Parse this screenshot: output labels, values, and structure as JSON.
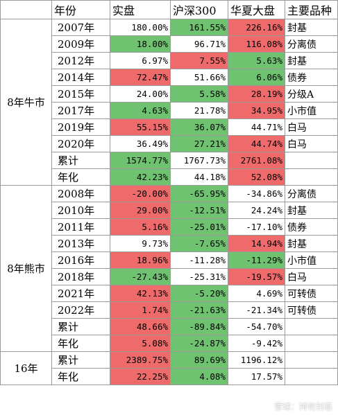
{
  "header": [
    "年份",
    "实盘",
    "沪深300",
    "华夏大盘",
    "主要品种"
  ],
  "groups": [
    {
      "label": "8年牛市",
      "rows": [
        {
          "year": "2007年",
          "cells": [
            {
              "v": "180.00%",
              "c": "w"
            },
            {
              "v": "161.55%",
              "c": "g"
            },
            {
              "v": "226.16%",
              "c": "r"
            }
          ],
          "variety": "封基"
        },
        {
          "year": "2009年",
          "cells": [
            {
              "v": "18.00%",
              "c": "g"
            },
            {
              "v": "96.71%",
              "c": "w"
            },
            {
              "v": "116.08%",
              "c": "r"
            }
          ],
          "variety": "分离债"
        },
        {
          "year": "2012年",
          "cells": [
            {
              "v": "6.97%",
              "c": "w"
            },
            {
              "v": "7.55%",
              "c": "r"
            },
            {
              "v": "5.63%",
              "c": "g"
            }
          ],
          "variety": "封基"
        },
        {
          "year": "2014年",
          "cells": [
            {
              "v": "72.47%",
              "c": "r"
            },
            {
              "v": "51.66%",
              "c": "w"
            },
            {
              "v": "6.06%",
              "c": "g"
            }
          ],
          "variety": "债券"
        },
        {
          "year": "2015年",
          "cells": [
            {
              "v": "24.00%",
              "c": "w"
            },
            {
              "v": "5.58%",
              "c": "g"
            },
            {
              "v": "28.19%",
              "c": "r"
            }
          ],
          "variety": "分级A"
        },
        {
          "year": "2017年",
          "cells": [
            {
              "v": "4.63%",
              "c": "g"
            },
            {
              "v": "21.78%",
              "c": "w"
            },
            {
              "v": "34.95%",
              "c": "r"
            }
          ],
          "variety": "小市值"
        },
        {
          "year": "2019年",
          "cells": [
            {
              "v": "55.15%",
              "c": "r"
            },
            {
              "v": "36.07%",
              "c": "g"
            },
            {
              "v": "44.71%",
              "c": "w"
            }
          ],
          "variety": "白马"
        },
        {
          "year": "2020年",
          "cells": [
            {
              "v": "36.49%",
              "c": "w"
            },
            {
              "v": "27.21%",
              "c": "g"
            },
            {
              "v": "44.74%",
              "c": "r"
            }
          ],
          "variety": "白马"
        },
        {
          "year": "累计",
          "cells": [
            {
              "v": "1574.77%",
              "c": "g"
            },
            {
              "v": "1767.73%",
              "c": "w"
            },
            {
              "v": "2761.08%",
              "c": "r"
            }
          ],
          "variety": ""
        },
        {
          "year": "年化",
          "cells": [
            {
              "v": "42.23%",
              "c": "g"
            },
            {
              "v": "44.18%",
              "c": "w"
            },
            {
              "v": "52.08%",
              "c": "r"
            }
          ],
          "variety": ""
        }
      ]
    },
    {
      "label": "8年熊市",
      "rows": [
        {
          "year": "2008年",
          "cells": [
            {
              "v": "-20.00%",
              "c": "r"
            },
            {
              "v": "-65.95%",
              "c": "g"
            },
            {
              "v": "-34.86%",
              "c": "w"
            }
          ],
          "variety": "分离债"
        },
        {
          "year": "2010年",
          "cells": [
            {
              "v": "29.00%",
              "c": "r"
            },
            {
              "v": "-12.51%",
              "c": "g"
            },
            {
              "v": "24.24%",
              "c": "w"
            }
          ],
          "variety": "封基"
        },
        {
          "year": "2011年",
          "cells": [
            {
              "v": "5.16%",
              "c": "r"
            },
            {
              "v": "-25.01%",
              "c": "g"
            },
            {
              "v": "-17.10%",
              "c": "w"
            }
          ],
          "variety": "债券"
        },
        {
          "year": "2013年",
          "cells": [
            {
              "v": "9.73%",
              "c": "w"
            },
            {
              "v": "-7.65%",
              "c": "g"
            },
            {
              "v": "14.94%",
              "c": "r"
            }
          ],
          "variety": "封基"
        },
        {
          "year": "2016年",
          "cells": [
            {
              "v": "18.96%",
              "c": "r"
            },
            {
              "v": "-11.28%",
              "c": "w"
            },
            {
              "v": "-11.29%",
              "c": "g"
            }
          ],
          "variety": "小市值"
        },
        {
          "year": "2018年",
          "cells": [
            {
              "v": "-27.43%",
              "c": "g"
            },
            {
              "v": "-25.31%",
              "c": "w"
            },
            {
              "v": "-19.57%",
              "c": "r"
            }
          ],
          "variety": "白马"
        },
        {
          "year": "2021年",
          "cells": [
            {
              "v": "42.13%",
              "c": "r"
            },
            {
              "v": "-5.20%",
              "c": "g"
            },
            {
              "v": "4.69%",
              "c": "w"
            }
          ],
          "variety": "可转债"
        },
        {
          "year": "2022年",
          "cells": [
            {
              "v": "1.74%",
              "c": "r"
            },
            {
              "v": "-21.63%",
              "c": "g"
            },
            {
              "v": "-21.34%",
              "c": "w"
            }
          ],
          "variety": "可转债"
        },
        {
          "year": "累计",
          "cells": [
            {
              "v": "48.66%",
              "c": "r"
            },
            {
              "v": "-89.84%",
              "c": "g"
            },
            {
              "v": "-54.70%",
              "c": "w"
            }
          ],
          "variety": ""
        },
        {
          "year": "年化",
          "cells": [
            {
              "v": "5.08%",
              "c": "r"
            },
            {
              "v": "-24.87%",
              "c": "g"
            },
            {
              "v": "-9.42%",
              "c": "w"
            }
          ],
          "variety": ""
        }
      ]
    },
    {
      "label": "16年",
      "rows": [
        {
          "year": "累计",
          "cells": [
            {
              "v": "2389.75%",
              "c": "r"
            },
            {
              "v": "89.69%",
              "c": "g"
            },
            {
              "v": "1196.12%",
              "c": "w"
            }
          ],
          "variety": ""
        },
        {
          "year": "年化",
          "cells": [
            {
              "v": "22.25%",
              "c": "r"
            },
            {
              "v": "4.08%",
              "c": "g"
            },
            {
              "v": "17.57%",
              "c": "w"
            }
          ],
          "variety": ""
        }
      ]
    }
  ],
  "colors": {
    "g": "#6fc26f",
    "r": "#ef6a6a",
    "w": "#ffffff"
  },
  "watermark": "雪球：持有封基"
}
